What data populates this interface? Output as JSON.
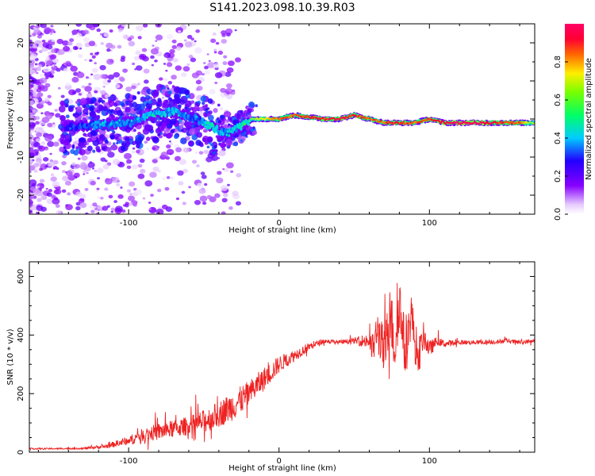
{
  "title": "S141.2023.098.10.39.R03",
  "colors": {
    "snr_line": "#ee2222",
    "colormap": [
      "#ffffff",
      "#e6ccff",
      "#8800ff",
      "#2200ff",
      "#00ccff",
      "#00ff66",
      "#ffee00",
      "#ff6600",
      "#ff0033",
      "#ff0066"
    ]
  },
  "chart_data": [
    {
      "type": "heatmap",
      "title": "",
      "xlabel": "Height of straight line (km)",
      "ylabel": "Frequency (Hz)",
      "xlim": [
        -166,
        170
      ],
      "ylim": [
        -25,
        25
      ],
      "xticks": [
        {
          "v": -100,
          "label": "-100"
        },
        {
          "v": 0,
          "label": "0"
        },
        {
          "v": 100,
          "label": "100"
        }
      ],
      "yticks": [
        {
          "v": -20,
          "label": "-20"
        },
        {
          "v": -10,
          "label": "-10"
        },
        {
          "v": 0,
          "label": "0"
        },
        {
          "v": 10,
          "label": "10"
        },
        {
          "v": 20,
          "label": "20"
        }
      ],
      "colorbar": {
        "label": "Normalized spectral amplitude",
        "range": [
          0,
          1
        ],
        "ticks": [
          {
            "v": 0,
            "label": "0.0"
          },
          {
            "v": 0.2,
            "label": "0.2"
          },
          {
            "v": 0.4,
            "label": "0.4"
          },
          {
            "v": 0.6,
            "label": "0.6"
          },
          {
            "v": 0.8,
            "label": "0.8"
          }
        ]
      },
      "ridge": {
        "x": [
          -140,
          -120,
          -100,
          -85,
          -70,
          -55,
          -45,
          -35,
          -25,
          -18,
          -10,
          0,
          10,
          20,
          30,
          40,
          50,
          60,
          70,
          80,
          90,
          100,
          110,
          120,
          130,
          140,
          150,
          160,
          170
        ],
        "freq": [
          -2,
          -1.5,
          -1,
          1,
          2,
          0,
          -2,
          -4,
          -2,
          0,
          0,
          0,
          1,
          0.5,
          0,
          0,
          1,
          0,
          -1,
          -1,
          -1,
          0,
          -1,
          -1,
          -1,
          -1,
          -1,
          -1,
          -1
        ],
        "amplitude": [
          0.3,
          0.4,
          0.4,
          0.45,
          0.45,
          0.35,
          0.5,
          0.4,
          0.5,
          0.6,
          0.75,
          0.85,
          0.85,
          0.9,
          0.9,
          0.95,
          0.9,
          0.85,
          0.85,
          0.9,
          0.85,
          0.9,
          0.95,
          1,
          1,
          0.95,
          0.9,
          0.85,
          0.6
        ]
      },
      "grid": false
    },
    {
      "type": "line",
      "title": "",
      "xlabel": "Height of straight line (km)",
      "ylabel": "SNR (10 * v/v)",
      "xlim": [
        -166,
        170
      ],
      "ylim": [
        0,
        650
      ],
      "xticks": [
        {
          "v": -100,
          "label": "-100"
        },
        {
          "v": 0,
          "label": "0"
        },
        {
          "v": 100,
          "label": "100"
        }
      ],
      "yticks": [
        {
          "v": 0,
          "label": "0"
        },
        {
          "v": 200,
          "label": "200"
        },
        {
          "v": 400,
          "label": "400"
        },
        {
          "v": 600,
          "label": "600"
        }
      ],
      "series": [
        {
          "x": [
            -166,
            -150,
            -130,
            -115,
            -100,
            -90,
            -80,
            -70,
            -60,
            -50,
            -40,
            -30,
            -20,
            -10,
            0,
            10,
            20,
            30,
            40,
            50,
            60,
            62,
            66,
            70,
            74,
            77,
            80,
            84,
            88,
            92,
            96,
            100,
            105,
            110,
            120,
            130,
            140,
            150,
            160,
            170
          ],
          "y": [
            12,
            12,
            13,
            20,
            40,
            60,
            70,
            80,
            90,
            105,
            130,
            160,
            200,
            250,
            300,
            330,
            360,
            380,
            375,
            380,
            380,
            350,
            420,
            330,
            470,
            360,
            520,
            330,
            480,
            300,
            400,
            350,
            380,
            370,
            375,
            375,
            375,
            380,
            375,
            380
          ],
          "spread": [
            5,
            5,
            6,
            15,
            30,
            45,
            60,
            60,
            65,
            80,
            90,
            100,
            90,
            80,
            60,
            40,
            30,
            15,
            15,
            20,
            60,
            110,
            140,
            180,
            200,
            220,
            200,
            180,
            150,
            120,
            90,
            60,
            30,
            25,
            15,
            15,
            15,
            15,
            15,
            15
          ]
        }
      ],
      "grid": false
    }
  ]
}
